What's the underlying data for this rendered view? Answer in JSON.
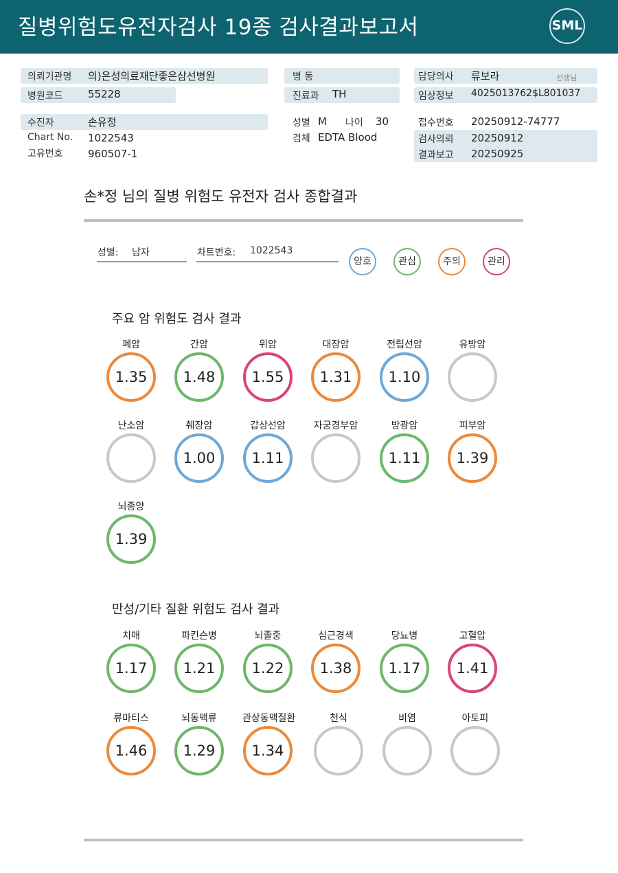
{
  "header": {
    "title": "질병위험도유전자검사 19종 검사결과보고서",
    "logo": "SML"
  },
  "info": {
    "institution_label": "의뢰기관명",
    "institution": "의)은성의료재단좋은삼선병원",
    "hospital_code_label": "병원코드",
    "hospital_code": "55228",
    "ward_label": "병 동",
    "ward": "",
    "dept_label": "진료과",
    "dept": "TH",
    "doctor_label": "담당의사",
    "doctor": "류보라",
    "doctor_suffix": "선생님",
    "clinical_label": "임상정보",
    "clinical": "4025013762$L801037",
    "patient_label": "수진자",
    "patient": "손유정",
    "chart_label": "Chart No.",
    "chart": "1022543",
    "unique_label": "고유번호",
    "unique": "960507-1",
    "sex_label": "성별",
    "sex": "M",
    "age_label": "나이",
    "age": "30",
    "specimen_label": "검체",
    "specimen": "EDTA Blood",
    "receipt_label": "접수번호",
    "receipt": "20250912-74777",
    "request_label": "검사의뢰",
    "request": "20250912",
    "report_label": "결과보고",
    "report": "20250925"
  },
  "summary": {
    "title": "손*정 님의 질병 위험도 유전자 검사 종합결과",
    "sex_label": "성별:",
    "sex": "남자",
    "chart_label": "차트번호:",
    "chart": "1022543"
  },
  "legend": [
    {
      "label": "양호",
      "color": "#6fa8d6"
    },
    {
      "label": "관심",
      "color": "#6cb86a"
    },
    {
      "label": "주의",
      "color": "#ea8a3c"
    },
    {
      "label": "관리",
      "color": "#d8457a"
    }
  ],
  "colors": {
    "good": "#6fa8d6",
    "interest": "#6cb86a",
    "caution": "#ea8a3c",
    "manage": "#d8457a",
    "none": "#c8c8c8"
  },
  "cancer": {
    "title": "주요 암 위험도 검사 결과",
    "items": [
      {
        "name": "폐암",
        "value": "1.35",
        "status": "caution"
      },
      {
        "name": "간암",
        "value": "1.48",
        "status": "interest"
      },
      {
        "name": "위암",
        "value": "1.55",
        "status": "manage"
      },
      {
        "name": "대장암",
        "value": "1.31",
        "status": "caution"
      },
      {
        "name": "전립선암",
        "value": "1.10",
        "status": "good"
      },
      {
        "name": "유방암",
        "value": "",
        "status": "none"
      },
      {
        "name": "난소암",
        "value": "",
        "status": "none"
      },
      {
        "name": "췌장암",
        "value": "1.00",
        "status": "good"
      },
      {
        "name": "갑상선암",
        "value": "1.11",
        "status": "good"
      },
      {
        "name": "자궁경부암",
        "value": "",
        "status": "none"
      },
      {
        "name": "방광암",
        "value": "1.11",
        "status": "interest"
      },
      {
        "name": "피부암",
        "value": "1.39",
        "status": "caution"
      },
      {
        "name": "뇌종양",
        "value": "1.39",
        "status": "interest"
      }
    ]
  },
  "chronic": {
    "title": "만성/기타 질환 위험도 검사 결과",
    "items": [
      {
        "name": "치매",
        "value": "1.17",
        "status": "interest"
      },
      {
        "name": "파킨슨병",
        "value": "1.21",
        "status": "interest"
      },
      {
        "name": "뇌졸중",
        "value": "1.22",
        "status": "interest"
      },
      {
        "name": "심근경색",
        "value": "1.38",
        "status": "caution"
      },
      {
        "name": "당뇨병",
        "value": "1.17",
        "status": "interest"
      },
      {
        "name": "고혈압",
        "value": "1.41",
        "status": "manage"
      },
      {
        "name": "류마티스",
        "value": "1.46",
        "status": "caution"
      },
      {
        "name": "뇌동맥류",
        "value": "1.29",
        "status": "interest"
      },
      {
        "name": "관상동맥질환",
        "value": "1.34",
        "status": "caution"
      },
      {
        "name": "천식",
        "value": "",
        "status": "none"
      },
      {
        "name": "비염",
        "value": "",
        "status": "none"
      },
      {
        "name": "아토피",
        "value": "",
        "status": "none"
      }
    ]
  }
}
